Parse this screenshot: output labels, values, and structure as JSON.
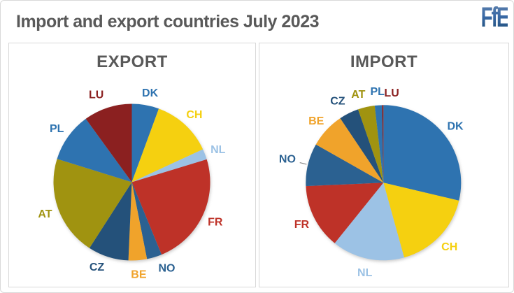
{
  "window": {
    "background": "#FFFFFF",
    "border_color": "#D9D9D9"
  },
  "header": {
    "title": "Import and export countries July 2023",
    "title_color": "#595959",
    "logo_text": "FfE",
    "logo_color": "#2E5E9E"
  },
  "chart_data": [
    {
      "type": "pie",
      "title": "EXPORT",
      "title_color": "#595959",
      "unit": "% (estimated from slice angles, no values printed on chart)",
      "start_angle_deg": 0,
      "clockwise": true,
      "labels_outside": true,
      "slices": [
        {
          "label": "DK",
          "value": 5.6,
          "color": "#2E73B0"
        },
        {
          "label": "CH",
          "value": 12.5,
          "color": "#F5D010"
        },
        {
          "label": "NL",
          "value": 2.2,
          "color": "#9CC2E5"
        },
        {
          "label": "FR",
          "value": 23.5,
          "color": "#BE3228"
        },
        {
          "label": "NO",
          "value": 3.1,
          "color": "#2B6191"
        },
        {
          "label": "BE",
          "value": 3.8,
          "color": "#F0A32B"
        },
        {
          "label": "CZ",
          "value": 8.4,
          "color": "#24517A"
        },
        {
          "label": "AT",
          "value": 20.7,
          "color": "#A09310"
        },
        {
          "label": "PL",
          "value": 10.2,
          "color": "#2E73B0"
        },
        {
          "label": "LU",
          "value": 10.0,
          "color": "#8B2020"
        }
      ],
      "layout_hints": {
        "legend": "none",
        "label_offsets": {
          "DK": [
            3,
            2
          ],
          "NO": [
            12,
            -4
          ],
          "CZ": [
            -10,
            -5
          ],
          "LU": [
            -10,
            0
          ]
        }
      }
    },
    {
      "type": "pie",
      "title": "IMPORT",
      "title_color": "#595959",
      "unit": "% (estimated from slice angles, no values printed on chart)",
      "start_angle_deg": 0,
      "clockwise": true,
      "labels_outside": true,
      "slices": [
        {
          "label": "DK",
          "value": 28.7,
          "color": "#2E73B0"
        },
        {
          "label": "CH",
          "value": 17.0,
          "color": "#F5D010"
        },
        {
          "label": "NL",
          "value": 15.1,
          "color": "#9CC2E5"
        },
        {
          "label": "FR",
          "value": 13.5,
          "color": "#BE3228"
        },
        {
          "label": "NO",
          "value": 8.9,
          "color": "#2B6191",
          "leader_line": true
        },
        {
          "label": "BE",
          "value": 7.4,
          "color": "#F0A32B"
        },
        {
          "label": "CZ",
          "value": 4.1,
          "color": "#24517A"
        },
        {
          "label": "AT",
          "value": 3.5,
          "color": "#A09310"
        },
        {
          "label": "PL",
          "value": 1.5,
          "color": "#2E73B0"
        },
        {
          "label": "LU",
          "value": 0.3,
          "color": "#8B2020"
        }
      ],
      "layout_hints": {
        "legend": "none",
        "label_offsets": {
          "NO": [
            -10,
            -4
          ],
          "CZ": [
            -7,
            0
          ],
          "AT": [
            -7,
            1
          ],
          "LU": [
            13,
            2
          ]
        }
      }
    }
  ]
}
